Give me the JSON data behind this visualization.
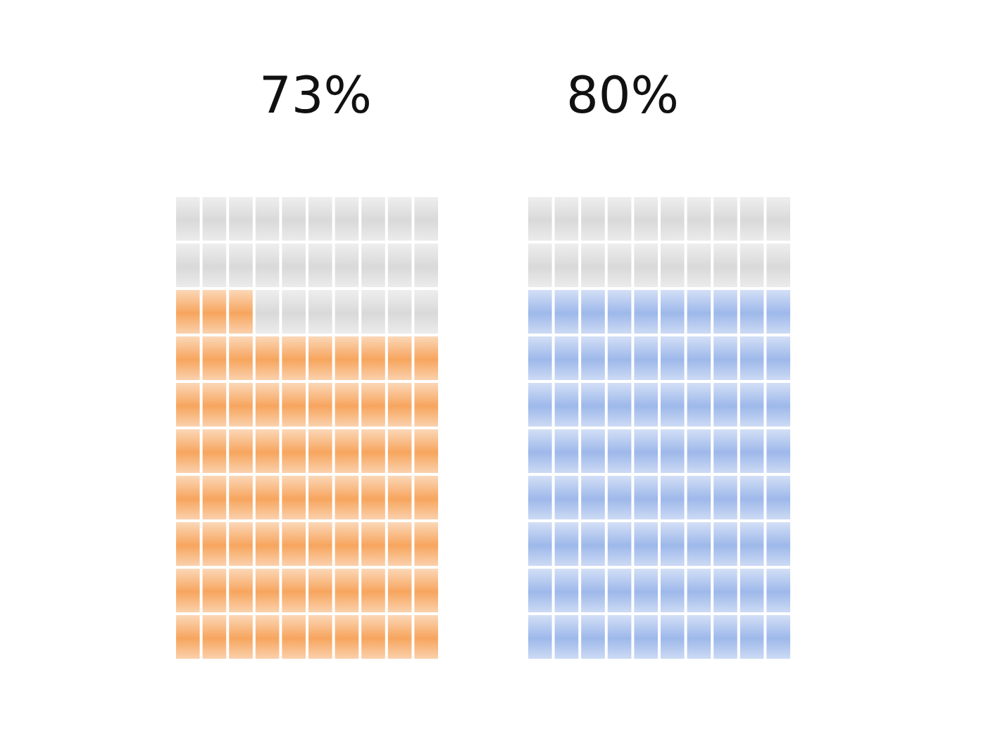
{
  "chart_data": [
    {
      "type": "other",
      "values": [
        73
      ],
      "value_labels": [
        "73%"
      ],
      "color": "#f7a55e"
    },
    {
      "type": "other",
      "values": [
        80
      ],
      "value_labels": [
        "80%"
      ],
      "color": "#9db8ea"
    }
  ]
}
